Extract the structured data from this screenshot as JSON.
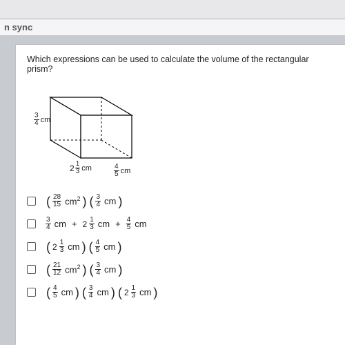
{
  "chrome": {
    "sync_text": "n sync"
  },
  "question": "Which expressions can be used to calculate the volume of the rectangular prism?",
  "prism": {
    "stroke": "#000000",
    "stroke_width": 1.2,
    "fill": "#ffffff",
    "dims": {
      "height": {
        "num": "3",
        "den": "4",
        "unit": "cm"
      },
      "depth": {
        "int": "2",
        "num": "1",
        "den": "3",
        "unit": "cm"
      },
      "width": {
        "num": "4",
        "den": "5",
        "unit": "cm"
      }
    }
  },
  "options": [
    {
      "type": "prod2",
      "a": {
        "num": "28",
        "den": "15",
        "unit": "cm",
        "sup": "2"
      },
      "b": {
        "num": "3",
        "den": "4",
        "unit": "cm"
      }
    },
    {
      "type": "sum3",
      "a": {
        "num": "3",
        "den": "4",
        "unit": "cm"
      },
      "b": {
        "int": "2",
        "num": "1",
        "den": "3",
        "unit": "cm"
      },
      "c": {
        "num": "4",
        "den": "5",
        "unit": "cm"
      }
    },
    {
      "type": "prod2",
      "a": {
        "int": "2",
        "num": "1",
        "den": "3",
        "unit": "cm"
      },
      "b": {
        "num": "4",
        "den": "5",
        "unit": "cm"
      }
    },
    {
      "type": "prod2",
      "a": {
        "num": "21",
        "den": "12",
        "unit": "cm",
        "sup": "2"
      },
      "b": {
        "num": "3",
        "den": "4",
        "unit": "cm"
      }
    },
    {
      "type": "prod3",
      "a": {
        "num": "4",
        "den": "5",
        "unit": "cm"
      },
      "b": {
        "num": "3",
        "den": "4",
        "unit": "cm"
      },
      "c": {
        "int": "2",
        "num": "1",
        "den": "3",
        "unit": "cm"
      }
    }
  ],
  "colors": {
    "page_bg": "#ffffff",
    "body_bg": "#c8ccd0"
  }
}
